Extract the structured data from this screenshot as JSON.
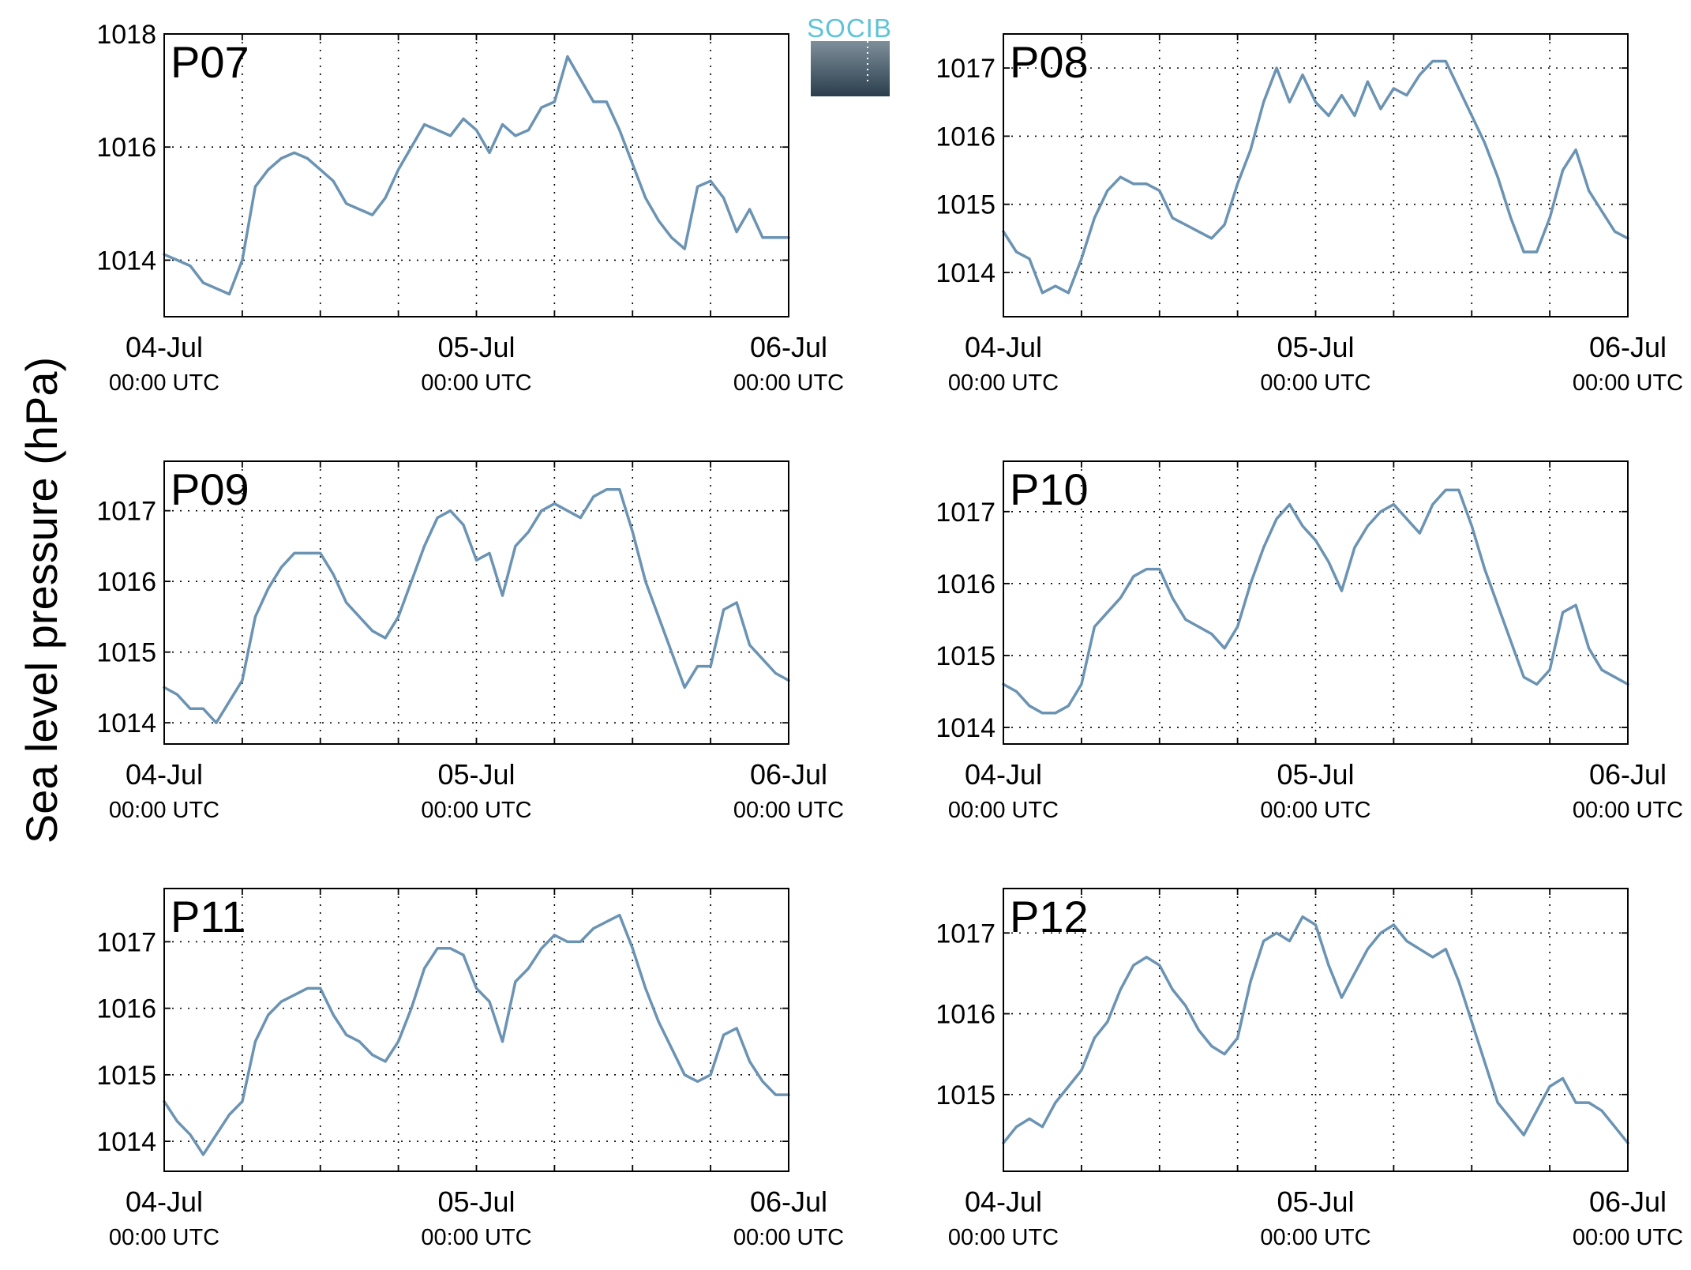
{
  "figure": {
    "ylabel": "Sea level pressure (hPa)",
    "logo_text": "SOCIB",
    "line_color": "#6b93b3",
    "panel_label_color": "#ff1a1a",
    "logo_colors": {
      "text": "#5ec3d6",
      "top": "#7f8f9a",
      "bottom": "#2a3e4d"
    }
  },
  "chart_data": [
    {
      "type": "line",
      "title": "P07",
      "x_ticks": [
        {
          "x": 0,
          "date": "04-Jul",
          "time": "00:00 UTC"
        },
        {
          "x": 24,
          "date": "05-Jul",
          "time": "00:00 UTC"
        },
        {
          "x": 48,
          "date": "06-Jul",
          "time": "00:00 UTC"
        }
      ],
      "xlim": [
        0,
        48
      ],
      "yticks": [
        1014,
        1016,
        1018
      ],
      "ylim": [
        1013.0,
        1018.0
      ],
      "grid": true,
      "series": [
        {
          "x": [
            0,
            1,
            2,
            3,
            4,
            5,
            6,
            7,
            8,
            9,
            10,
            11,
            12,
            13,
            14,
            15,
            16,
            17,
            18,
            19,
            20,
            21,
            22,
            23,
            24,
            25,
            26,
            27,
            28,
            29,
            30,
            31,
            32,
            33,
            34,
            35,
            36,
            37,
            38,
            39,
            40,
            41,
            42,
            43,
            44,
            45,
            46,
            47,
            48
          ],
          "values": [
            1014.1,
            1014.0,
            1013.9,
            1013.6,
            1013.5,
            1013.4,
            1014.0,
            1015.3,
            1015.6,
            1015.8,
            1015.9,
            1015.8,
            1015.6,
            1015.4,
            1015.0,
            1014.9,
            1014.8,
            1015.1,
            1015.6,
            1016.0,
            1016.4,
            1016.3,
            1016.2,
            1016.5,
            1016.3,
            1015.9,
            1016.4,
            1016.2,
            1016.3,
            1016.7,
            1016.8,
            1017.6,
            1017.2,
            1016.8,
            1016.8,
            1016.3,
            1015.7,
            1015.1,
            1014.7,
            1014.4,
            1014.2,
            1015.3,
            1015.4,
            1015.1,
            1014.5,
            1014.9,
            1014.4,
            1014.4,
            1014.4
          ]
        }
      ]
    },
    {
      "type": "line",
      "title": "P08",
      "x_ticks": [
        {
          "x": 0,
          "date": "04-Jul",
          "time": "00:00 UTC"
        },
        {
          "x": 24,
          "date": "05-Jul",
          "time": "00:00 UTC"
        },
        {
          "x": 48,
          "date": "06-Jul",
          "time": "00:00 UTC"
        }
      ],
      "xlim": [
        0,
        48
      ],
      "yticks": [
        1014,
        1015,
        1016,
        1017
      ],
      "ylim": [
        1013.35,
        1017.5
      ],
      "grid": true,
      "series": [
        {
          "x": [
            0,
            1,
            2,
            3,
            4,
            5,
            6,
            7,
            8,
            9,
            10,
            11,
            12,
            13,
            14,
            15,
            16,
            17,
            18,
            19,
            20,
            21,
            22,
            23,
            24,
            25,
            26,
            27,
            28,
            29,
            30,
            31,
            32,
            33,
            34,
            35,
            36,
            37,
            38,
            39,
            40,
            41,
            42,
            43,
            44,
            45,
            46,
            47,
            48
          ],
          "values": [
            1014.6,
            1014.3,
            1014.2,
            1013.7,
            1013.8,
            1013.7,
            1014.2,
            1014.8,
            1015.2,
            1015.4,
            1015.3,
            1015.3,
            1015.2,
            1014.8,
            1014.7,
            1014.6,
            1014.5,
            1014.7,
            1015.3,
            1015.8,
            1016.5,
            1017.0,
            1016.5,
            1016.9,
            1016.5,
            1016.3,
            1016.6,
            1016.3,
            1016.8,
            1016.4,
            1016.7,
            1016.6,
            1016.9,
            1017.1,
            1017.1,
            1016.7,
            1016.3,
            1015.9,
            1015.4,
            1014.8,
            1014.3,
            1014.3,
            1014.8,
            1015.5,
            1015.8,
            1015.2,
            1014.9,
            1014.6,
            1014.5
          ]
        }
      ]
    },
    {
      "type": "line",
      "title": "P09",
      "x_ticks": [
        {
          "x": 0,
          "date": "04-Jul",
          "time": "00:00 UTC"
        },
        {
          "x": 24,
          "date": "05-Jul",
          "time": "00:00 UTC"
        },
        {
          "x": 48,
          "date": "06-Jul",
          "time": "00:00 UTC"
        }
      ],
      "xlim": [
        0,
        48
      ],
      "yticks": [
        1014,
        1015,
        1016,
        1017
      ],
      "ylim": [
        1013.7,
        1017.7
      ],
      "grid": true,
      "series": [
        {
          "x": [
            0,
            1,
            2,
            3,
            4,
            5,
            6,
            7,
            8,
            9,
            10,
            11,
            12,
            13,
            14,
            15,
            16,
            17,
            18,
            19,
            20,
            21,
            22,
            23,
            24,
            25,
            26,
            27,
            28,
            29,
            30,
            31,
            32,
            33,
            34,
            35,
            36,
            37,
            38,
            39,
            40,
            41,
            42,
            43,
            44,
            45,
            46,
            47,
            48
          ],
          "values": [
            1014.5,
            1014.4,
            1014.2,
            1014.2,
            1014.0,
            1014.3,
            1014.6,
            1015.5,
            1015.9,
            1016.2,
            1016.4,
            1016.4,
            1016.4,
            1016.1,
            1015.7,
            1015.5,
            1015.3,
            1015.2,
            1015.5,
            1016.0,
            1016.5,
            1016.9,
            1017.0,
            1016.8,
            1016.3,
            1016.4,
            1015.8,
            1016.5,
            1016.7,
            1017.0,
            1017.1,
            1017.0,
            1016.9,
            1017.2,
            1017.3,
            1017.3,
            1016.7,
            1016.0,
            1015.5,
            1015.0,
            1014.5,
            1014.8,
            1014.8,
            1015.6,
            1015.7,
            1015.1,
            1014.9,
            1014.7,
            1014.6
          ]
        }
      ]
    },
    {
      "type": "line",
      "title": "P10",
      "x_ticks": [
        {
          "x": 0,
          "date": "04-Jul",
          "time": "00:00 UTC"
        },
        {
          "x": 24,
          "date": "05-Jul",
          "time": "00:00 UTC"
        },
        {
          "x": 48,
          "date": "06-Jul",
          "time": "00:00 UTC"
        }
      ],
      "xlim": [
        0,
        48
      ],
      "yticks": [
        1014,
        1015,
        1016,
        1017
      ],
      "ylim": [
        1013.77,
        1017.7
      ],
      "grid": true,
      "series": [
        {
          "x": [
            0,
            1,
            2,
            3,
            4,
            5,
            6,
            7,
            8,
            9,
            10,
            11,
            12,
            13,
            14,
            15,
            16,
            17,
            18,
            19,
            20,
            21,
            22,
            23,
            24,
            25,
            26,
            27,
            28,
            29,
            30,
            31,
            32,
            33,
            34,
            35,
            36,
            37,
            38,
            39,
            40,
            41,
            42,
            43,
            44,
            45,
            46,
            47,
            48
          ],
          "values": [
            1014.6,
            1014.5,
            1014.3,
            1014.2,
            1014.2,
            1014.3,
            1014.6,
            1015.4,
            1015.6,
            1015.8,
            1016.1,
            1016.2,
            1016.2,
            1015.8,
            1015.5,
            1015.4,
            1015.3,
            1015.1,
            1015.4,
            1016.0,
            1016.5,
            1016.9,
            1017.1,
            1016.8,
            1016.6,
            1016.3,
            1015.9,
            1016.5,
            1016.8,
            1017.0,
            1017.1,
            1016.9,
            1016.7,
            1017.1,
            1017.3,
            1017.3,
            1016.8,
            1016.2,
            1015.7,
            1015.2,
            1014.7,
            1014.6,
            1014.8,
            1015.6,
            1015.7,
            1015.1,
            1014.8,
            1014.7,
            1014.6
          ]
        }
      ]
    },
    {
      "type": "line",
      "title": "P11",
      "x_ticks": [
        {
          "x": 0,
          "date": "04-Jul",
          "time": "00:00 UTC"
        },
        {
          "x": 24,
          "date": "05-Jul",
          "time": "00:00 UTC"
        },
        {
          "x": 48,
          "date": "06-Jul",
          "time": "00:00 UTC"
        }
      ],
      "xlim": [
        0,
        48
      ],
      "yticks": [
        1014,
        1015,
        1016,
        1017
      ],
      "ylim": [
        1013.55,
        1017.8
      ],
      "grid": true,
      "series": [
        {
          "x": [
            0,
            1,
            2,
            3,
            4,
            5,
            6,
            7,
            8,
            9,
            10,
            11,
            12,
            13,
            14,
            15,
            16,
            17,
            18,
            19,
            20,
            21,
            22,
            23,
            24,
            25,
            26,
            27,
            28,
            29,
            30,
            31,
            32,
            33,
            34,
            35,
            36,
            37,
            38,
            39,
            40,
            41,
            42,
            43,
            44,
            45,
            46,
            47,
            48
          ],
          "values": [
            1014.6,
            1014.3,
            1014.1,
            1013.8,
            1014.1,
            1014.4,
            1014.6,
            1015.5,
            1015.9,
            1016.1,
            1016.2,
            1016.3,
            1016.3,
            1015.9,
            1015.6,
            1015.5,
            1015.3,
            1015.2,
            1015.5,
            1016.0,
            1016.6,
            1016.9,
            1016.9,
            1016.8,
            1016.3,
            1016.1,
            1015.5,
            1016.4,
            1016.6,
            1016.9,
            1017.1,
            1017.0,
            1017.0,
            1017.2,
            1017.3,
            1017.4,
            1016.9,
            1016.3,
            1015.8,
            1015.4,
            1015.0,
            1014.9,
            1015.0,
            1015.6,
            1015.7,
            1015.2,
            1014.9,
            1014.7,
            1014.7
          ]
        }
      ]
    },
    {
      "type": "line",
      "title": "P12",
      "x_ticks": [
        {
          "x": 0,
          "date": "04-Jul",
          "time": "00:00 UTC"
        },
        {
          "x": 24,
          "date": "05-Jul",
          "time": "00:00 UTC"
        },
        {
          "x": 48,
          "date": "06-Jul",
          "time": "00:00 UTC"
        }
      ],
      "xlim": [
        0,
        48
      ],
      "yticks": [
        1015,
        1016,
        1017
      ],
      "ylim": [
        1014.05,
        1017.55
      ],
      "grid": true,
      "series": [
        {
          "x": [
            0,
            1,
            2,
            3,
            4,
            5,
            6,
            7,
            8,
            9,
            10,
            11,
            12,
            13,
            14,
            15,
            16,
            17,
            18,
            19,
            20,
            21,
            22,
            23,
            24,
            25,
            26,
            27,
            28,
            29,
            30,
            31,
            32,
            33,
            34,
            35,
            36,
            37,
            38,
            39,
            40,
            41,
            42,
            43,
            44,
            45,
            46,
            47,
            48
          ],
          "values": [
            1014.4,
            1014.6,
            1014.7,
            1014.6,
            1014.9,
            1015.1,
            1015.3,
            1015.7,
            1015.9,
            1016.3,
            1016.6,
            1016.7,
            1016.6,
            1016.3,
            1016.1,
            1015.8,
            1015.6,
            1015.5,
            1015.7,
            1016.4,
            1016.9,
            1017.0,
            1016.9,
            1017.2,
            1017.1,
            1016.6,
            1016.2,
            1016.5,
            1016.8,
            1017.0,
            1017.1,
            1016.9,
            1016.8,
            1016.7,
            1016.8,
            1016.4,
            1015.9,
            1015.4,
            1014.9,
            1014.7,
            1014.5,
            1014.8,
            1015.1,
            1015.2,
            1014.9,
            1014.9,
            1014.8,
            1014.6,
            1014.4
          ]
        }
      ]
    }
  ]
}
